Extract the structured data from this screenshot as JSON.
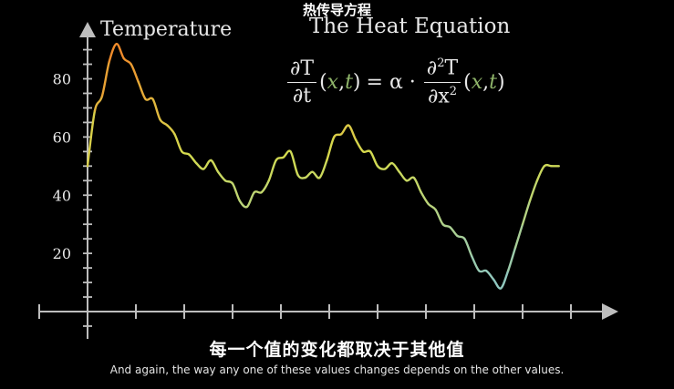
{
  "header": {
    "chinese_title": "热传导方程",
    "english_title": "The Heat Equation"
  },
  "equation": {
    "lhs_numerator": "∂T",
    "lhs_denominator": "∂t",
    "args_open": "(",
    "arg_x": "x",
    "comma": ",",
    "arg_t": "t",
    "args_close": ")",
    "equals_alpha_dot": "= α ·",
    "rhs_numerator": "∂",
    "rhs_numerator_power": "2",
    "rhs_numerator_var": "T",
    "rhs_denominator": "∂x",
    "rhs_denominator_power": "2"
  },
  "subtitles": {
    "chinese": "每一个值的变化都取决于其他值",
    "english": "And again, the way any one of these values changes depends on the other values."
  },
  "chart_data": {
    "type": "line",
    "title": "",
    "xlabel": "",
    "ylabel": "Temperature",
    "y_ticks": [
      20,
      40,
      60,
      80
    ],
    "ylim": [
      -10,
      95
    ],
    "xlim": [
      0,
      10
    ],
    "x_tick_count": 11,
    "grid": false,
    "x": [
      0.0,
      0.15,
      0.3,
      0.45,
      0.6,
      0.75,
      0.9,
      1.05,
      1.2,
      1.35,
      1.5,
      1.65,
      1.8,
      1.95,
      2.1,
      2.25,
      2.4,
      2.55,
      2.7,
      2.85,
      3.0,
      3.15,
      3.3,
      3.45,
      3.6,
      3.75,
      3.9,
      4.05,
      4.2,
      4.35,
      4.5,
      4.65,
      4.8,
      4.95,
      5.1,
      5.25,
      5.4,
      5.55,
      5.7,
      5.85,
      6.0,
      6.15,
      6.3,
      6.45,
      6.6,
      6.75,
      6.9,
      7.05,
      7.2,
      7.35,
      7.5,
      7.65,
      7.8,
      7.95,
      8.1,
      8.25,
      8.4,
      8.55,
      8.7,
      8.85,
      9.0,
      9.15,
      9.3,
      9.45,
      9.6,
      9.75,
      9.9,
      10.0
    ],
    "values": [
      50,
      69,
      74,
      86,
      92,
      87,
      85,
      79,
      73,
      73,
      66,
      64,
      61,
      55,
      54,
      51,
      49,
      52,
      48,
      45,
      44,
      38,
      36,
      41,
      41,
      45,
      52,
      53,
      55,
      47,
      46,
      48,
      46,
      52,
      60,
      61,
      64,
      59,
      55,
      55,
      50,
      49,
      51,
      48,
      45,
      46,
      41,
      37,
      35,
      30,
      29,
      26,
      25,
      19,
      14,
      14,
      11,
      8,
      14,
      22,
      30,
      38,
      45,
      50,
      50,
      50,
      50,
      50
    ],
    "values_visible_until_x": 9.75,
    "line_color_low": "#8fc7c0",
    "line_color_mid": "#d4db4e",
    "line_color_high": "#f08a2a"
  }
}
